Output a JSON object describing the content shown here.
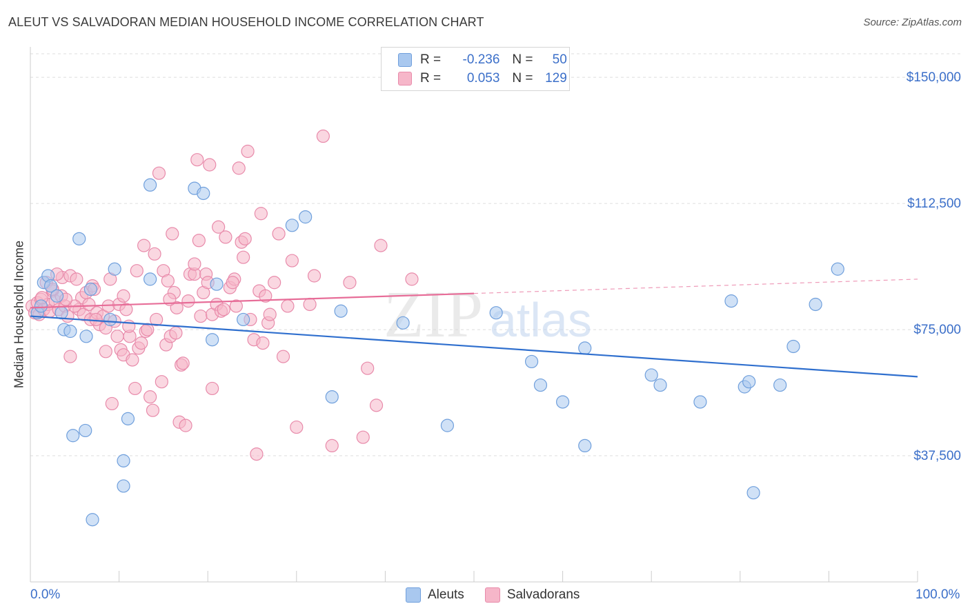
{
  "title": "ALEUT VS SALVADORAN MEDIAN HOUSEHOLD INCOME CORRELATION CHART",
  "source": "Source: ZipAtlas.com",
  "watermark": "ZIPatlas",
  "legend": {
    "rows": [
      {
        "r_label": "R =",
        "r_value": "-0.236",
        "n_label": "N =",
        "n_value": "50"
      },
      {
        "r_label": "R =",
        "r_value": "0.053",
        "n_label": "N =",
        "n_value": "129"
      }
    ]
  },
  "bottom_legend": [
    "Aleuts",
    "Salvadorans"
  ],
  "colors": {
    "aleut_fill": "#a9c8ef",
    "aleut_stroke": "#6f9fdc",
    "aleut_line": "#2f6fce",
    "salv_fill": "#f6b6c9",
    "salv_stroke": "#e88aaa",
    "salv_line": "#e76d98",
    "axis_text": "#3b6fc9",
    "grid": "#dddddd"
  },
  "chart_data": {
    "type": "scatter",
    "title": "ALEUT VS SALVADORAN MEDIAN HOUSEHOLD INCOME CORRELATION CHART",
    "xlabel": "",
    "ylabel": "Median Household Income",
    "xlim": [
      0,
      100
    ],
    "ylim": [
      0,
      157000
    ],
    "x_tick_labels": [
      "0.0%",
      "100.0%"
    ],
    "y_ticks": [
      37500,
      75000,
      112500,
      150000
    ],
    "y_tick_labels": [
      "$37,500",
      "$75,000",
      "$112,500",
      "$150,000"
    ],
    "grid": "horizontal dashed",
    "legend_position": "top-center",
    "series": [
      {
        "name": "Aleuts",
        "r": -0.236,
        "n": 50,
        "trend": {
          "x": [
            0,
            100
          ],
          "y": [
            79000,
            61000
          ],
          "dashed_from": null
        },
        "points": [
          [
            0.8,
            80000
          ],
          [
            1.2,
            82000
          ],
          [
            1.5,
            89000
          ],
          [
            2,
            91000
          ],
          [
            2.3,
            88000
          ],
          [
            3,
            85000
          ],
          [
            3.5,
            80000
          ],
          [
            3.8,
            75000
          ],
          [
            4.5,
            74500
          ],
          [
            4.8,
            43500
          ],
          [
            5.5,
            102000
          ],
          [
            6.2,
            45000
          ],
          [
            6.8,
            87000
          ],
          [
            7,
            18500
          ],
          [
            6.3,
            73000
          ],
          [
            9,
            78000
          ],
          [
            9.5,
            93000
          ],
          [
            10.5,
            36000
          ],
          [
            10.5,
            28500
          ],
          [
            11,
            48500
          ],
          [
            13.5,
            90000
          ],
          [
            13.5,
            118000
          ],
          [
            18.5,
            117000
          ],
          [
            19.5,
            115500
          ],
          [
            20.5,
            72000
          ],
          [
            21,
            88500
          ],
          [
            24,
            78000
          ],
          [
            29.5,
            106000
          ],
          [
            31,
            108500
          ],
          [
            34,
            55000
          ],
          [
            35,
            80500
          ],
          [
            42,
            77000
          ],
          [
            47,
            46500
          ],
          [
            52.5,
            80000
          ],
          [
            56.5,
            65500
          ],
          [
            57.5,
            58500
          ],
          [
            60,
            53500
          ],
          [
            62.5,
            69500
          ],
          [
            62.5,
            40500
          ],
          [
            70,
            61500
          ],
          [
            71,
            58500
          ],
          [
            75.5,
            53500
          ],
          [
            79,
            83500
          ],
          [
            80.5,
            58000
          ],
          [
            81,
            59500
          ],
          [
            81.5,
            26500
          ],
          [
            84.5,
            58500
          ],
          [
            86,
            70000
          ],
          [
            88.5,
            82500
          ],
          [
            91,
            93000
          ]
        ]
      },
      {
        "name": "Salvadorans",
        "r": 0.053,
        "n": 129,
        "trend": {
          "x": [
            0,
            100
          ],
          "y": [
            81500,
            90000
          ],
          "dashed_from": 50
        },
        "points": [
          [
            0.2,
            82000
          ],
          [
            0.5,
            80000
          ],
          [
            0.8,
            83000
          ],
          [
            1,
            79500
          ],
          [
            1.2,
            84000
          ],
          [
            1.5,
            81000
          ],
          [
            1.8,
            89000
          ],
          [
            2,
            82500
          ],
          [
            2.2,
            80500
          ],
          [
            2.5,
            86500
          ],
          [
            2.8,
            83500
          ],
          [
            3.2,
            81000
          ],
          [
            3.5,
            85000
          ],
          [
            3.6,
            90500
          ],
          [
            3.9,
            82000
          ],
          [
            4.2,
            79000
          ],
          [
            4.5,
            91000
          ],
          [
            4.5,
            67000
          ],
          [
            5.2,
            90000
          ],
          [
            5.5,
            81000
          ],
          [
            5.8,
            84500
          ],
          [
            6,
            79500
          ],
          [
            6.3,
            86000
          ],
          [
            6.6,
            82500
          ],
          [
            6.8,
            78000
          ],
          [
            7,
            88000
          ],
          [
            7.2,
            87000
          ],
          [
            7.5,
            80000
          ],
          [
            7.8,
            76500
          ],
          [
            8.2,
            79000
          ],
          [
            8.5,
            75500
          ],
          [
            8.5,
            68500
          ],
          [
            8.8,
            82000
          ],
          [
            9,
            90000
          ],
          [
            9.2,
            53000
          ],
          [
            9.5,
            77500
          ],
          [
            9.8,
            73000
          ],
          [
            10,
            82500
          ],
          [
            10.2,
            69000
          ],
          [
            10.5,
            67500
          ],
          [
            10.5,
            85000
          ],
          [
            10.8,
            81000
          ],
          [
            11.2,
            73000
          ],
          [
            11.5,
            66000
          ],
          [
            11.8,
            57500
          ],
          [
            12,
            92500
          ],
          [
            12.2,
            69500
          ],
          [
            12.5,
            71000
          ],
          [
            12.8,
            100000
          ],
          [
            13,
            74500
          ],
          [
            13.2,
            75000
          ],
          [
            13.5,
            55000
          ],
          [
            13.8,
            51000
          ],
          [
            14,
            97500
          ],
          [
            14.2,
            78000
          ],
          [
            14.5,
            121500
          ],
          [
            14.8,
            59500
          ],
          [
            15,
            92500
          ],
          [
            15.3,
            70500
          ],
          [
            15.5,
            89500
          ],
          [
            15.8,
            73000
          ],
          [
            16,
            103500
          ],
          [
            16.2,
            86000
          ],
          [
            16.5,
            81500
          ],
          [
            16.8,
            47500
          ],
          [
            17,
            64500
          ],
          [
            17.2,
            65000
          ],
          [
            17.5,
            46500
          ],
          [
            17.8,
            83500
          ],
          [
            18,
            91500
          ],
          [
            18.5,
            91500
          ],
          [
            18.5,
            94500
          ],
          [
            18.8,
            125500
          ],
          [
            19,
            101500
          ],
          [
            19.2,
            79000
          ],
          [
            19.5,
            86000
          ],
          [
            19.8,
            91500
          ],
          [
            20,
            89000
          ],
          [
            20.2,
            124000
          ],
          [
            20.5,
            57500
          ],
          [
            20.5,
            79500
          ],
          [
            21,
            82500
          ],
          [
            21.2,
            105500
          ],
          [
            21.5,
            80500
          ],
          [
            21.8,
            81000
          ],
          [
            22,
            102500
          ],
          [
            22.5,
            87500
          ],
          [
            23,
            90000
          ],
          [
            23.2,
            82000
          ],
          [
            23.5,
            123000
          ],
          [
            23.8,
            101000
          ],
          [
            24,
            96500
          ],
          [
            24.2,
            102000
          ],
          [
            24.5,
            128000
          ],
          [
            24.8,
            78000
          ],
          [
            25.2,
            72000
          ],
          [
            25.5,
            38000
          ],
          [
            25.8,
            86500
          ],
          [
            26,
            109500
          ],
          [
            26.2,
            71000
          ],
          [
            26.5,
            85000
          ],
          [
            26.8,
            77000
          ],
          [
            27,
            79500
          ],
          [
            27.5,
            89000
          ],
          [
            28,
            103500
          ],
          [
            28.5,
            67000
          ],
          [
            29,
            82000
          ],
          [
            29.5,
            95500
          ],
          [
            30,
            46000
          ],
          [
            31.5,
            82500
          ],
          [
            32,
            91000
          ],
          [
            34,
            40500
          ],
          [
            36,
            89000
          ],
          [
            37.5,
            43000
          ],
          [
            38,
            63500
          ],
          [
            39,
            52500
          ],
          [
            39.5,
            100000
          ],
          [
            43,
            90000
          ],
          [
            33,
            132500
          ],
          [
            22.8,
            89000
          ],
          [
            7.4,
            78000
          ],
          [
            11.1,
            76000
          ],
          [
            16.4,
            74000
          ],
          [
            15.7,
            84000
          ],
          [
            5,
            82000
          ],
          [
            4,
            84000
          ],
          [
            3,
            91500
          ],
          [
            2.5,
            87000
          ],
          [
            1.3,
            84500
          ]
        ]
      }
    ]
  }
}
